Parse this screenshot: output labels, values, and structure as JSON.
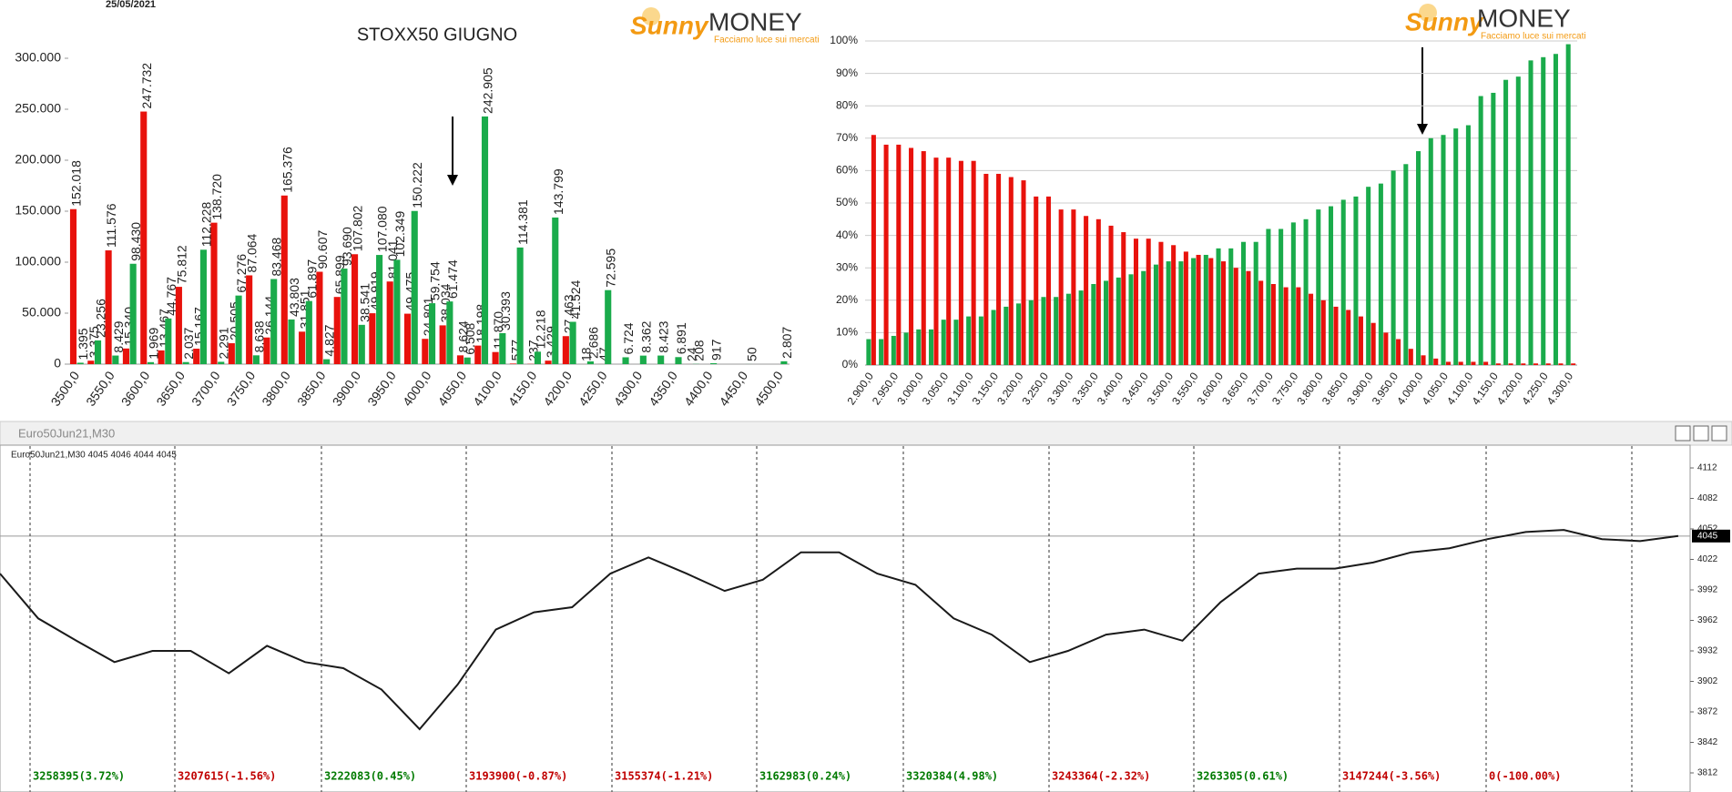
{
  "header": {
    "date": "25/05/2021"
  },
  "logos": [
    {
      "brand": "Sunny",
      "name": "MONEY",
      "tagline": "Facciamo luce sui mercati"
    },
    {
      "brand": "Sunny",
      "name": "MONEY",
      "tagline": "Facciamo luce sui mercati"
    }
  ],
  "chart_data": [
    {
      "type": "bar",
      "title": "STOXX50 GIUGNO",
      "categories": [
        "3500,0",
        null,
        "3550,0",
        null,
        "3600,0",
        null,
        "3650,0",
        null,
        "3700,0",
        null,
        "3750,0",
        null,
        "3800,0",
        null,
        "3850,0",
        null,
        "3900,0",
        null,
        "3950,0",
        null,
        "4000,0",
        null,
        "4050,0",
        null,
        "4100,0",
        null,
        "4150,0",
        null,
        "4200,0",
        null,
        "4250,0",
        null,
        "4300,0",
        null,
        "4350,0",
        null,
        "4400,0",
        null,
        "4450,0",
        null,
        "4500,0"
      ],
      "series": [
        {
          "color": "#e8120c",
          "values": [
            152018,
            3375,
            111576,
            15340,
            247732,
            13467,
            75812,
            15167,
            138720,
            20505,
            87064,
            26144,
            165376,
            31851,
            90607,
            65899,
            107802,
            49919,
            81041,
            49475,
            24801,
            38034,
            8624,
            18198,
            11870,
            577,
            237,
            3429,
            27463,
            18,
            47,
            null,
            null,
            null,
            null,
            24,
            null,
            null,
            null,
            null,
            null
          ],
          "value_labels": [
            "152.018",
            "3.375",
            "111.576",
            "15.340",
            "247.732",
            "13.467",
            "75.812",
            "15.167",
            "138.720",
            "20.505",
            "87.064",
            "26.144",
            "165.376",
            "31.851",
            "90.607",
            "65.899",
            "107.802",
            "49.919",
            "81.041",
            "49.475",
            "24.801",
            "38.034",
            "8.624",
            "18.198",
            "11.870",
            "577",
            "237",
            "3.429",
            "27.463",
            "18",
            "47",
            null,
            null,
            null,
            null,
            "24",
            null,
            null,
            null,
            null,
            null
          ]
        },
        {
          "color": "#1aab4b",
          "values": [
            1395,
            23256,
            8429,
            98430,
            1969,
            44767,
            2037,
            112228,
            2291,
            67276,
            8638,
            83468,
            43803,
            61897,
            4827,
            93690,
            38541,
            107080,
            102349,
            150222,
            59754,
            61474,
            6508,
            242905,
            30393,
            114381,
            12218,
            143799,
            41524,
            2686,
            72595,
            6724,
            8362,
            8423,
            6891,
            208,
            917,
            null,
            50,
            null,
            2807
          ],
          "value_labels": [
            "1.395",
            "23.256",
            "8.429",
            "98.430",
            "1.969",
            "44.767",
            "2.037",
            "112.228",
            "2.291",
            "67.276",
            "8.638",
            "83.468",
            "43.803",
            "61.897",
            "4.827",
            "93.690",
            "38.541",
            "107.080",
            "102.349",
            "150.222",
            "59.754",
            "61.474",
            "6.508",
            "242.905",
            "30.393",
            "114.381",
            "12.218",
            "143.799",
            "41.524",
            "2.686",
            "72.595",
            "6.724",
            "8.362",
            "8.423",
            "6.891",
            "208",
            "917",
            null,
            "50",
            null,
            "2.807"
          ]
        }
      ],
      "ylim": [
        0,
        300000
      ],
      "yticks": [
        0,
        {
          "value": 50000,
          "label": "50.000"
        },
        {
          "value": 100000,
          "label": "100.000"
        },
        {
          "value": 150000,
          "label": "150.000"
        },
        {
          "value": 200000,
          "label": "200.000"
        },
        {
          "value": 250000,
          "label": "250.000"
        },
        {
          "value": 300000,
          "label": "300.000"
        }
      ]
    },
    {
      "type": "bar",
      "categories": [
        "2.900,0",
        null,
        "2.950,0",
        null,
        "3.000,0",
        null,
        "3.050,0",
        null,
        "3.100,0",
        null,
        "3.150,0",
        null,
        "3.200,0",
        null,
        "3.250,0",
        null,
        "3.300,0",
        null,
        "3.350,0",
        null,
        "3.400,0",
        null,
        "3.450,0",
        null,
        "3.500,0",
        null,
        "3.550,0",
        null,
        "3.600,0",
        null,
        "3.650,0",
        null,
        "3.700,0",
        null,
        "3.750,0",
        null,
        "3.800,0",
        null,
        "3.850,0",
        null,
        "3.900,0",
        null,
        "3.950,0",
        null,
        "4.000,0",
        null,
        "4.050,0",
        null,
        "4.100,0",
        null,
        "4.150,0",
        null,
        "4.200,0",
        null,
        "4.250,0",
        null,
        "4.300,0"
      ],
      "series": [
        {
          "color": "#1aab4b",
          "values": [
            8,
            8,
            9,
            10,
            11,
            11,
            14,
            14,
            15,
            15,
            17,
            18,
            19,
            20,
            21,
            21,
            22,
            23,
            25,
            26,
            27,
            28,
            29,
            31,
            32,
            32,
            33,
            34,
            36,
            36,
            38,
            38,
            42,
            42,
            44,
            45,
            48,
            49,
            51,
            52,
            55,
            56,
            60,
            62,
            66,
            70,
            71,
            73,
            74,
            83,
            84,
            88,
            89,
            94,
            95,
            96,
            99
          ]
        },
        {
          "color": "#e8120c",
          "values": [
            71,
            68,
            68,
            67,
            66,
            64,
            64,
            63,
            63,
            59,
            59,
            58,
            57,
            52,
            52,
            48,
            48,
            46,
            45,
            43,
            41,
            39,
            39,
            38,
            37,
            35,
            34,
            33,
            32,
            30,
            29,
            26,
            25,
            24,
            24,
            22,
            20,
            18,
            17,
            15,
            13,
            10,
            8,
            5,
            3,
            2,
            1,
            1,
            1,
            1,
            0.5,
            0.5,
            0.5,
            0.5,
            0.5,
            0.5,
            0.5
          ]
        }
      ],
      "ylim": [
        0,
        100
      ],
      "grid": true,
      "yticks": [
        {
          "value": 0,
          "label": "0%"
        },
        {
          "value": 10,
          "label": "10%"
        },
        {
          "value": 20,
          "label": "20%"
        },
        {
          "value": 30,
          "label": "30%"
        },
        {
          "value": 40,
          "label": "40%"
        },
        {
          "value": 50,
          "label": "50%"
        },
        {
          "value": 60,
          "label": "60%"
        },
        {
          "value": 70,
          "label": "70%"
        },
        {
          "value": 80,
          "label": "80%"
        },
        {
          "value": 90,
          "label": "90%"
        },
        {
          "value": 100,
          "label": "100%"
        }
      ]
    },
    {
      "type": "line",
      "title": "Euro50Jun21,M30",
      "subtitle": "Euro50Jun21,M30  4045 4046 4044 4045",
      "color": "#1a1a1a",
      "values": [
        4008,
        3964,
        3942,
        3921,
        3932,
        3932,
        3910,
        3937,
        3921,
        3915,
        3894,
        3855,
        3899,
        3953,
        3970,
        3975,
        4008,
        4024,
        4008,
        3991,
        4002,
        4029,
        4029,
        4008,
        3997,
        3964,
        3948,
        3921,
        3932,
        3948,
        3953,
        3942,
        3980,
        4008,
        4013,
        4013,
        4019,
        4029,
        4033,
        4042,
        4049,
        4051,
        4042,
        4040,
        4045
      ],
      "ylim": [
        3800,
        4125
      ],
      "yticks": [
        4112,
        4082,
        4052,
        4022,
        3992,
        3962,
        3932,
        3902,
        3872,
        3842,
        3812
      ],
      "last_price": {
        "value": 4045,
        "label": "4045"
      },
      "sessions": [
        {
          "label": "3258395(3.72%)",
          "color": "#007a00"
        },
        {
          "label": "3207615(-1.56%)",
          "color": "#c00000"
        },
        {
          "label": "3222083(0.45%)",
          "color": "#007a00"
        },
        {
          "label": "3193900(-0.87%)",
          "color": "#c00000"
        },
        {
          "label": "3155374(-1.21%)",
          "color": "#c00000"
        },
        {
          "label": "3162983(0.24%)",
          "color": "#007a00"
        },
        {
          "label": "3320384(4.98%)",
          "color": "#007a00"
        },
        {
          "label": "3243364(-2.32%)",
          "color": "#c00000"
        },
        {
          "label": "3263305(0.61%)",
          "color": "#007a00"
        },
        {
          "label": "3147244(-3.56%)",
          "color": "#c00000"
        },
        {
          "label": "0(-100.00%)",
          "color": "#c00000"
        }
      ]
    }
  ]
}
